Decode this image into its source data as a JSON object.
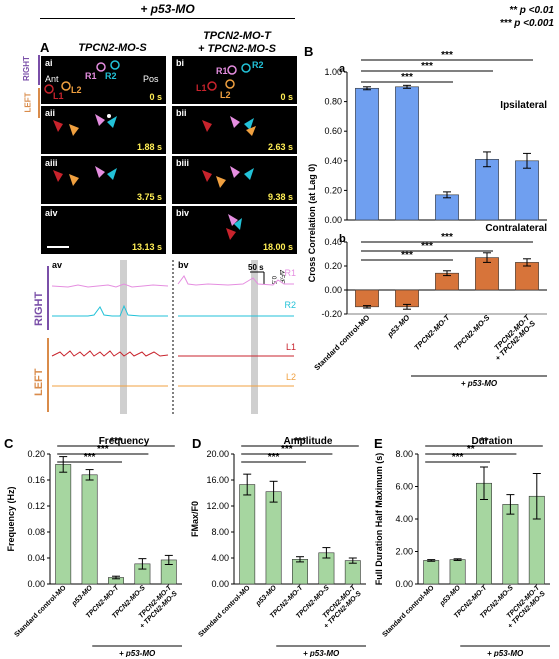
{
  "top_label": "+ p53-MO",
  "significance": [
    "** p <0.01",
    "*** p <0.001"
  ],
  "panel_a": {
    "letter": "A",
    "col_left": "TPCN2-MO-S",
    "col_right_1": "TPCN2-MO-T",
    "col_right_2": "+ TPCN2-MO-S",
    "side_right": "RIGHT",
    "side_left": "LEFT",
    "frames_left": [
      {
        "label": "ai",
        "time": "0 s"
      },
      {
        "label": "aii",
        "time": "1.88 s"
      },
      {
        "label": "aiii",
        "time": "3.75 s"
      },
      {
        "label": "aiv",
        "time": "13.13 s"
      }
    ],
    "frames_right": [
      {
        "label": "bi",
        "time": "0 s"
      },
      {
        "label": "bii",
        "time": "2.63 s"
      },
      {
        "label": "biii",
        "time": "9.38 s"
      },
      {
        "label": "biv",
        "time": "18.00 s"
      }
    ],
    "roi": {
      "ant": "Ant",
      "pos": "Pos",
      "r1": "R1",
      "r2": "R2",
      "l1": "L1",
      "l2": "L2"
    },
    "trace_left_label": "av",
    "trace_right_label": "bv",
    "scale_time": "50 s",
    "scale_amp": "0.5",
    "scale_unit": "ΔF/F",
    "traces": [
      "R1",
      "R2",
      "L1",
      "L2"
    ],
    "trace_side_right": "RIGHT",
    "trace_side_left": "LEFT"
  },
  "colors": {
    "r1": "#e58ee0",
    "r2": "#22c2d8",
    "l1": "#c8232c",
    "l2": "#f0a040",
    "blue": "#6f9ff0",
    "orange": "#d7743a",
    "green": "#a6d6a0",
    "purple": "#7a4fa8",
    "leftorange": "#d98b4a"
  },
  "chart_data": [
    {
      "id": "B-a",
      "type": "bar",
      "panel": "B",
      "sub": "a",
      "title": "Ipsilateral",
      "ylabel": "Cross Correlation (at Lag 0)",
      "ylim": [
        0.0,
        1.0
      ],
      "yticks": [
        "0.00",
        "0.20",
        "0.40",
        "0.60",
        "0.80",
        "1.00"
      ],
      "values": [
        0.89,
        0.9,
        0.17,
        0.41,
        0.4
      ],
      "errors": [
        0.01,
        0.01,
        0.02,
        0.05,
        0.05
      ],
      "significance": [
        "***",
        "***",
        "***"
      ]
    },
    {
      "id": "B-b",
      "type": "bar",
      "sub": "b",
      "title": "Contralateral",
      "ylim": [
        -0.2,
        0.4
      ],
      "yticks": [
        "-0.20",
        "0.00",
        "0.20",
        "0.40"
      ],
      "categories": [
        "Standard control-MO",
        "p53-MO",
        "TPCN2-MO-T",
        "TPCN2-MO-S",
        "TPCN2-MO-T + TPCN2-MO-S"
      ],
      "values": [
        -0.14,
        -0.14,
        0.14,
        0.27,
        0.23
      ],
      "errors": [
        0.01,
        0.02,
        0.02,
        0.04,
        0.03
      ],
      "significance": [
        "***",
        "***",
        "***"
      ],
      "group_label": "+ p53-MO"
    },
    {
      "id": "C",
      "type": "bar",
      "panel": "C",
      "title": "Frequency",
      "ylabel": "Frequency (Hz)",
      "ylim": [
        0,
        0.2
      ],
      "yticks": [
        "0.00",
        "0.04",
        "0.08",
        "0.12",
        "0.16",
        "0.20"
      ],
      "categories": [
        "Standard control-MO",
        "p53-MO",
        "TPCN2-MO-T",
        "TPCN2-MO-S",
        "TPCN2-MO-T + TPCN2-MO-S"
      ],
      "values": [
        0.184,
        0.168,
        0.01,
        0.031,
        0.037
      ],
      "errors": [
        0.012,
        0.008,
        0.002,
        0.008,
        0.007
      ],
      "significance": [
        "***",
        "***",
        "***"
      ],
      "group_label": "+ p53-MO"
    },
    {
      "id": "D",
      "type": "bar",
      "panel": "D",
      "title": "Amplitude",
      "ylabel": "FMax/F0",
      "ylim": [
        0,
        20
      ],
      "yticks": [
        "0.00",
        "4.00",
        "8.00",
        "12.00",
        "16.00",
        "20.00"
      ],
      "categories": [
        "Standard control-MO",
        "p53-MO",
        "TPCN2-MO-T",
        "TPCN2-MO-S",
        "TPCN2-MO-T + TPCN2-MO-S"
      ],
      "values": [
        15.3,
        14.2,
        3.8,
        4.8,
        3.6
      ],
      "errors": [
        1.6,
        1.6,
        0.4,
        0.8,
        0.4
      ],
      "significance": [
        "***",
        "***",
        "***"
      ],
      "group_label": "+ p53-MO"
    },
    {
      "id": "E",
      "type": "bar",
      "panel": "E",
      "title": "Duration",
      "ylabel": "Full Duration Half Maximum (s)",
      "ylim": [
        0,
        8
      ],
      "yticks": [
        "0.00",
        "2.00",
        "4.00",
        "6.00",
        "8.00"
      ],
      "categories": [
        "Standard control-MO",
        "p53-MO",
        "TPCN2-MO-T",
        "TPCN2-MO-S",
        "TPCN2-MO-T + TPCN2-MO-S"
      ],
      "values": [
        1.45,
        1.5,
        6.2,
        4.9,
        5.4
      ],
      "errors": [
        0.05,
        0.05,
        1.0,
        0.6,
        1.4
      ],
      "significance": [
        "***",
        "**",
        "**"
      ],
      "group_label": "+ p53-MO"
    }
  ]
}
